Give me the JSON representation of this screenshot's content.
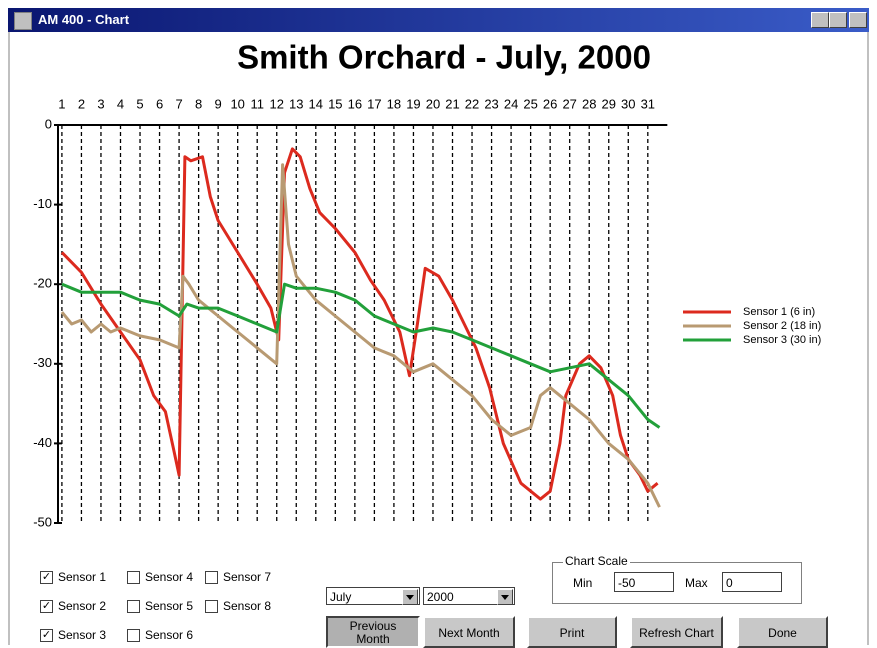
{
  "window": {
    "title": "AM 400 - Chart"
  },
  "chart_data": {
    "type": "line",
    "title": "Smith Orchard - July, 2000",
    "xlim": [
      0.8,
      32
    ],
    "xticks": [
      1,
      2,
      3,
      4,
      5,
      6,
      7,
      8,
      9,
      10,
      11,
      12,
      13,
      14,
      15,
      16,
      17,
      18,
      19,
      20,
      21,
      22,
      23,
      24,
      25,
      26,
      27,
      28,
      29,
      30,
      31
    ],
    "ylim": [
      -50,
      0
    ],
    "yticks": [
      0,
      -10,
      -20,
      -30,
      -40,
      -50
    ],
    "grid": true,
    "legend": "right",
    "series": [
      {
        "name": "Sensor 1 (6 in)",
        "color": "#dc2a1e",
        "x": [
          1,
          2,
          3,
          4,
          5,
          5.7,
          6.3,
          6.7,
          7.0,
          7.3,
          7.6,
          8.2,
          8.6,
          9,
          10,
          11,
          11.7,
          12.1,
          12.4,
          12.8,
          13.2,
          13.7,
          14.2,
          15,
          16,
          16.8,
          17.5,
          18.3,
          18.8,
          19.2,
          19.6,
          20.3,
          21,
          21.5,
          22.2,
          22.9,
          23.6,
          24.5,
          25.5,
          26,
          26.5,
          26.8,
          27.5,
          28,
          28.6,
          29.2,
          29.6,
          30,
          30.6,
          31,
          31.5
        ],
        "values": [
          -16,
          -18.5,
          -22.5,
          -26,
          -29.5,
          -34,
          -36,
          -40.5,
          -44,
          -4,
          -4.5,
          -4,
          -9,
          -12,
          -16,
          -20,
          -23,
          -27,
          -6,
          -3,
          -4,
          -8,
          -11,
          -13,
          -16,
          -19.5,
          -22,
          -26,
          -31.5,
          -25,
          -18,
          -19,
          -22,
          -24.5,
          -28,
          -33,
          -40,
          -45,
          -47,
          -46,
          -40,
          -34,
          -30,
          -29,
          -30.5,
          -34,
          -39,
          -42,
          -44,
          -46,
          -45
        ]
      },
      {
        "name": "Sensor 2 (18 in)",
        "color": "#b89a72",
        "x": [
          1,
          1.5,
          2,
          2.5,
          3,
          3.5,
          4,
          5,
          6,
          7,
          7.2,
          7.5,
          8,
          9,
          10,
          11,
          12,
          12.3,
          12.6,
          13,
          14,
          15,
          16,
          17,
          18,
          19,
          20,
          21,
          22,
          23,
          24,
          25,
          25.5,
          26,
          27,
          28,
          29,
          30,
          31,
          31.6
        ],
        "values": [
          -23.5,
          -25,
          -24.5,
          -26,
          -25,
          -26,
          -25.5,
          -26.5,
          -27,
          -28,
          -19,
          -20,
          -22,
          -24,
          -26,
          -28,
          -30,
          -5,
          -15,
          -19,
          -22,
          -24,
          -26,
          -28,
          -29,
          -31,
          -30,
          -32,
          -34,
          -37,
          -39,
          -38,
          -34,
          -33,
          -35,
          -37,
          -40,
          -42,
          -45,
          -48
        ]
      },
      {
        "name": "Sensor 3 (30 in)",
        "color": "#22a03a",
        "x": [
          1,
          2,
          3,
          4,
          5,
          6,
          7,
          7.4,
          8,
          9,
          10,
          11,
          12,
          12.4,
          13,
          14,
          15,
          16,
          17,
          18,
          19,
          20,
          21,
          22,
          23,
          24,
          25,
          26,
          27,
          28,
          29,
          30,
          31,
          31.6
        ],
        "values": [
          -20,
          -21,
          -21,
          -21,
          -22,
          -22.5,
          -24,
          -22.5,
          -23,
          -23,
          -24,
          -25,
          -26,
          -20,
          -20.5,
          -20.5,
          -21,
          -22,
          -24,
          -25,
          -26,
          -25.5,
          -26,
          -27,
          -28,
          -29,
          -30,
          -31,
          -30.5,
          -30,
          -32,
          -34,
          -37,
          -38
        ]
      }
    ]
  },
  "controls": {
    "sensors": [
      {
        "label": "Sensor 1",
        "checked": true
      },
      {
        "label": "Sensor 2",
        "checked": true
      },
      {
        "label": "Sensor 3",
        "checked": true
      },
      {
        "label": "Sensor 4",
        "checked": false
      },
      {
        "label": "Sensor 5",
        "checked": false
      },
      {
        "label": "Sensor 6",
        "checked": false
      },
      {
        "label": "Sensor 7",
        "checked": false
      },
      {
        "label": "Sensor 8",
        "checked": false
      }
    ],
    "month": "July",
    "year": "2000",
    "buttons": [
      "Previous Month",
      "Next Month",
      "Print",
      "Refresh Chart",
      "Done"
    ],
    "chart_scale": {
      "title": "Chart Scale",
      "min_label": "Min",
      "min": "-50",
      "max_label": "Max",
      "max": "0"
    }
  }
}
